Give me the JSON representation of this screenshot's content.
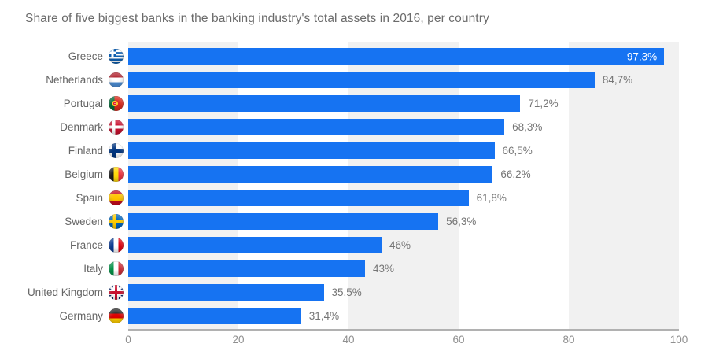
{
  "title": "Share of five biggest banks in the banking industry's total assets in 2016, per country",
  "colors": {
    "bar": "#1673f2",
    "band_gray": "#f1f1f1",
    "axis_line": "#b1b1b1",
    "category_label": "#666666",
    "value_label": "#757575",
    "value_label_inside": "#ffffff",
    "title": "#6b6b6b",
    "tick_label": "#8f8f8f"
  },
  "chart_data": {
    "type": "bar",
    "orientation": "horizontal",
    "title": "Share of five biggest banks in the banking industry's total assets in 2016, per country",
    "xlabel": "",
    "ylabel": "",
    "xlim": [
      0,
      100
    ],
    "x_ticks": [
      0,
      20,
      40,
      60,
      80,
      100
    ],
    "grid": "alternating 20-unit vertical gray bands",
    "legend": "none",
    "unit": "%",
    "decimal_separator": ",",
    "countries": [
      {
        "name": "Greece",
        "flag": "greece",
        "value": 97.3,
        "label": "97,3%",
        "label_inside": true
      },
      {
        "name": "Netherlands",
        "flag": "netherlands",
        "value": 84.7,
        "label": "84,7%",
        "label_inside": false
      },
      {
        "name": "Portugal",
        "flag": "portugal",
        "value": 71.2,
        "label": "71,2%",
        "label_inside": false
      },
      {
        "name": "Denmark",
        "flag": "denmark",
        "value": 68.3,
        "label": "68,3%",
        "label_inside": false
      },
      {
        "name": "Finland",
        "flag": "finland",
        "value": 66.5,
        "label": "66,5%",
        "label_inside": false
      },
      {
        "name": "Belgium",
        "flag": "belgium",
        "value": 66.2,
        "label": "66,2%",
        "label_inside": false
      },
      {
        "name": "Spain",
        "flag": "spain",
        "value": 61.8,
        "label": "61,8%",
        "label_inside": false
      },
      {
        "name": "Sweden",
        "flag": "sweden",
        "value": 56.3,
        "label": "56,3%",
        "label_inside": false
      },
      {
        "name": "France",
        "flag": "france",
        "value": 46,
        "label": "46%",
        "label_inside": false
      },
      {
        "name": "Italy",
        "flag": "italy",
        "value": 43,
        "label": "43%",
        "label_inside": false
      },
      {
        "name": "United Kingdom",
        "flag": "uk",
        "value": 35.5,
        "label": "35,5%",
        "label_inside": false
      },
      {
        "name": "Germany",
        "flag": "germany",
        "value": 31.4,
        "label": "31,4%",
        "label_inside": false
      }
    ]
  }
}
